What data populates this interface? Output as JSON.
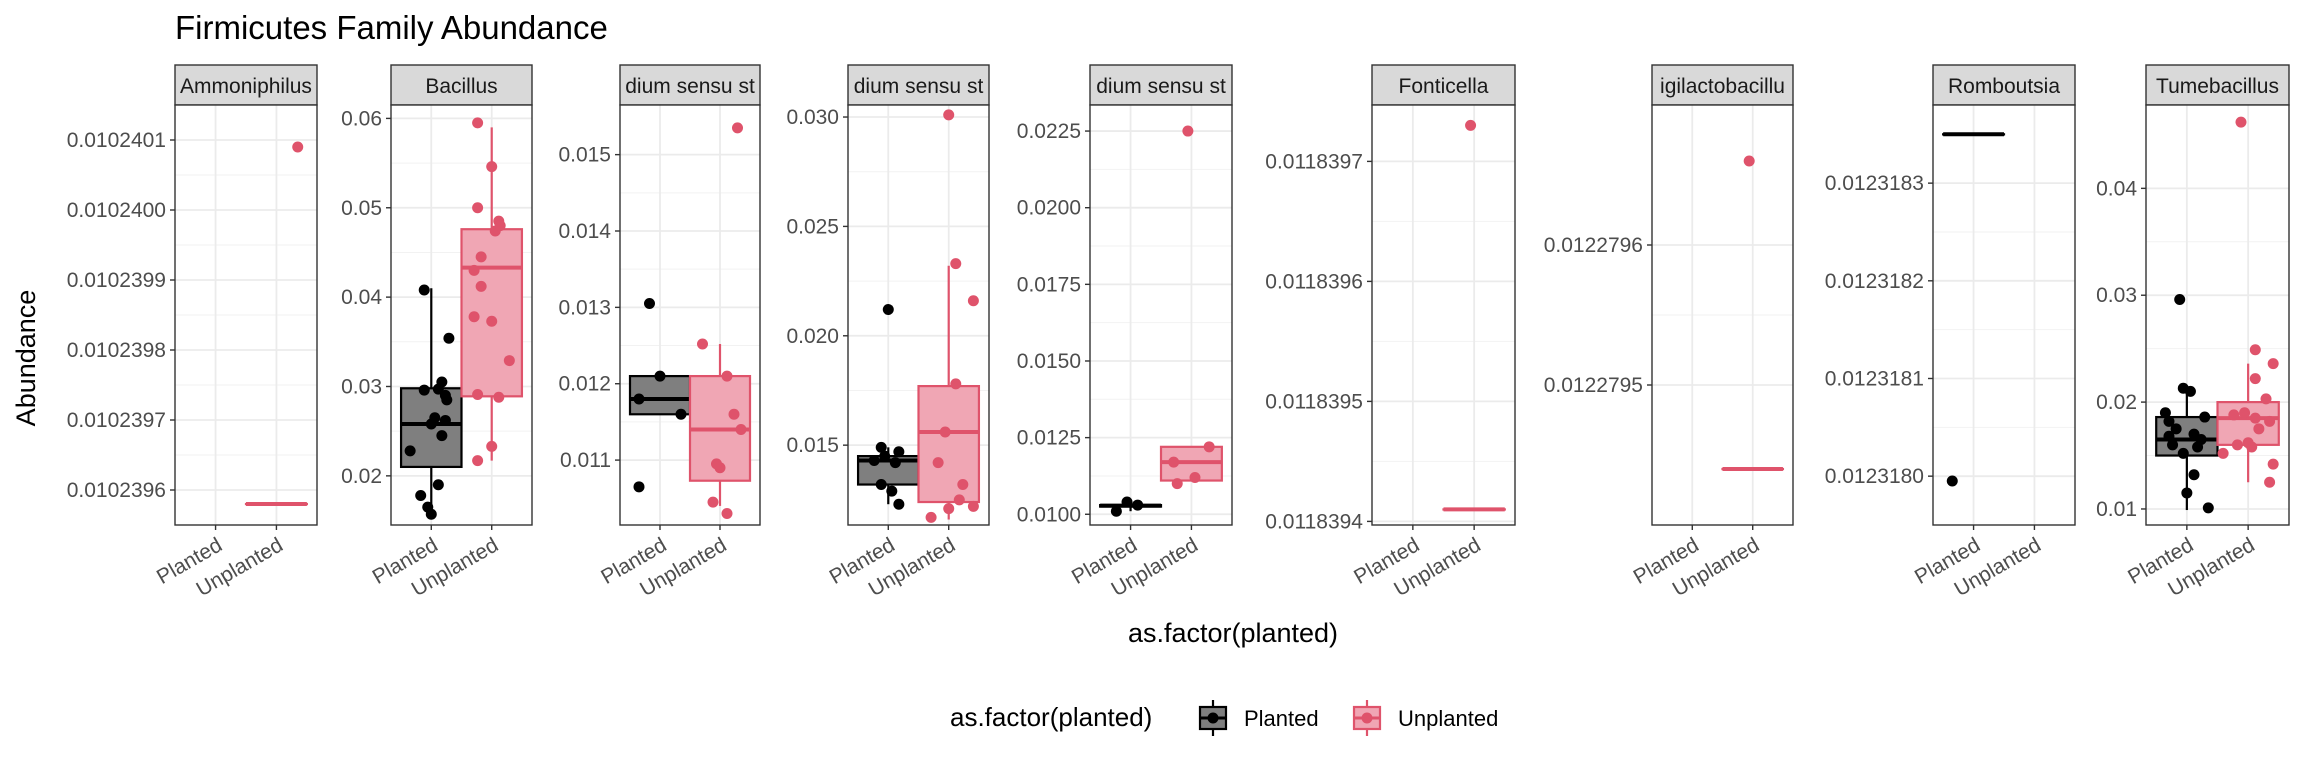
{
  "colors": {
    "planted": "#000000",
    "unplanted": "#DF536B"
  },
  "chart_data": {
    "type": "box",
    "title": "Firmicutes Family Abundance",
    "xlabel": "as.factor(planted)",
    "ylabel": "Abundance",
    "categories": [
      "Planted",
      "Unplanted"
    ],
    "grid": true,
    "legend": {
      "title": "as.factor(planted)",
      "position": "bottom",
      "entries": [
        "Planted",
        "Unplanted"
      ]
    },
    "panels": [
      {
        "strip": "Ammoniphilus",
        "ylim": [
          0.01023955,
          0.01024015
        ],
        "yticks": [
          0.0102396,
          0.0102397,
          0.0102398,
          0.0102399,
          0.01024,
          0.0102401
        ],
        "yticklabels": [
          "0.0102396",
          "0.0102397",
          "0.0102398",
          "0.0102399",
          "0.0102400",
          "0.0102401"
        ],
        "series": [
          {
            "name": "Planted",
            "box": null,
            "points": []
          },
          {
            "name": "Unplanted",
            "box": [
              0.01023958,
              0.01023958,
              0.01023958,
              0.01023958,
              0.01023958
            ],
            "points": [
              [
                0.3,
                0.01024009
              ]
            ]
          }
        ]
      },
      {
        "strip": "Bacillus",
        "ylim": [
          0.0145,
          0.0615
        ],
        "yticks": [
          0.02,
          0.03,
          0.04,
          0.05,
          0.06
        ],
        "yticklabels": [
          "0.02",
          "0.03",
          "0.04",
          "0.05",
          "0.06"
        ],
        "series": [
          {
            "name": "Planted",
            "box": [
              0.0157,
              0.021,
              0.0258,
              0.0298,
              0.041
            ],
            "points": [
              [
                -0.3,
                0.0228
              ],
              [
                -0.15,
                0.0178
              ],
              [
                -0.05,
                0.0165
              ],
              [
                0.1,
                0.019
              ],
              [
                0.0,
                0.0157
              ],
              [
                0.25,
                0.0354
              ],
              [
                0.1,
                0.0297
              ],
              [
                0.15,
                0.0305
              ],
              [
                0.2,
                0.029
              ],
              [
                -0.1,
                0.0296
              ],
              [
                0.05,
                0.0265
              ],
              [
                0.2,
                0.0262
              ],
              [
                0.15,
                0.0245
              ],
              [
                -0.1,
                0.0408
              ],
              [
                0.22,
                0.0285
              ],
              [
                0.0,
                0.0258
              ]
            ]
          },
          {
            "name": "Unplanted",
            "box": [
              0.0217,
              0.0289,
              0.0433,
              0.0476,
              0.059
            ],
            "points": [
              [
                -0.2,
                0.0595
              ],
              [
                0.0,
                0.0546
              ],
              [
                -0.2,
                0.05
              ],
              [
                0.1,
                0.0485
              ],
              [
                0.05,
                0.0474
              ],
              [
                -0.15,
                0.0445
              ],
              [
                -0.25,
                0.043
              ],
              [
                -0.15,
                0.0412
              ],
              [
                -0.25,
                0.0378
              ],
              [
                0.0,
                0.0373
              ],
              [
                0.25,
                0.0329
              ],
              [
                -0.2,
                0.0291
              ],
              [
                0.1,
                0.0288
              ],
              [
                0.0,
                0.0233
              ],
              [
                -0.2,
                0.0217
              ],
              [
                0.12,
                0.048
              ]
            ]
          }
        ]
      },
      {
        "strip": "dium sensu st",
        "ylim": [
          0.01015,
          0.01565
        ],
        "yticks": [
          0.011,
          0.012,
          0.013,
          0.014,
          0.015
        ],
        "yticklabels": [
          "0.011",
          "0.012",
          "0.013",
          "0.014",
          "0.015"
        ],
        "series": [
          {
            "name": "Planted",
            "box": [
              0.0116,
              0.0116,
              0.0118,
              0.0121,
              0.0121
            ],
            "points": [
              [
                -0.3,
                0.01065
              ],
              [
                -0.3,
                0.0118
              ],
              [
                0.3,
                0.0116
              ],
              [
                0.0,
                0.0121
              ],
              [
                -0.15,
                0.01305
              ]
            ]
          },
          {
            "name": "Unplanted",
            "box": [
              0.0104,
              0.01073,
              0.0114,
              0.0121,
              0.01252
            ],
            "points": [
              [
                0.25,
                0.01535
              ],
              [
                -0.25,
                0.01252
              ],
              [
                0.1,
                0.0121
              ],
              [
                0.2,
                0.0116
              ],
              [
                0.3,
                0.0114
              ],
              [
                0.0,
                0.0109
              ],
              [
                -0.05,
                0.01095
              ],
              [
                -0.1,
                0.01045
              ],
              [
                0.1,
                0.0103
              ]
            ]
          }
        ]
      },
      {
        "strip": "dium sensu st",
        "ylim": [
          0.01135,
          0.03055
        ],
        "yticks": [
          0.015,
          0.02,
          0.025,
          0.03
        ],
        "yticklabels": [
          "0.015",
          "0.020",
          "0.025",
          "0.030"
        ],
        "series": [
          {
            "name": "Planted",
            "box": [
              0.0123,
              0.0132,
              0.0143,
              0.0145,
              0.0149
            ],
            "points": [
              [
                0.0,
                0.0212
              ],
              [
                -0.1,
                0.0149
              ],
              [
                0.15,
                0.0147
              ],
              [
                -0.05,
                0.0145
              ],
              [
                -0.2,
                0.0143
              ],
              [
                0.1,
                0.0142
              ],
              [
                -0.1,
                0.0132
              ],
              [
                0.05,
                0.0129
              ],
              [
                0.15,
                0.0123
              ]
            ]
          },
          {
            "name": "Unplanted",
            "box": [
              0.0116,
              0.0124,
              0.0156,
              0.0177,
              0.0232
            ],
            "points": [
              [
                0.0,
                0.0301
              ],
              [
                0.1,
                0.0233
              ],
              [
                0.35,
                0.0216
              ],
              [
                0.1,
                0.0178
              ],
              [
                -0.05,
                0.0156
              ],
              [
                -0.15,
                0.0142
              ],
              [
                0.2,
                0.0132
              ],
              [
                0.35,
                0.0122
              ],
              [
                0.15,
                0.0125
              ],
              [
                -0.25,
                0.0117
              ],
              [
                0.0,
                0.0121
              ]
            ]
          }
        ]
      },
      {
        "strip": "dium sensu st",
        "ylim": [
          0.00965,
          0.02335
        ],
        "yticks": [
          0.01,
          0.0125,
          0.015,
          0.0175,
          0.02,
          0.0225
        ],
        "yticklabels": [
          "0.0100",
          "0.0125",
          "0.0150",
          "0.0175",
          "0.0200",
          "0.0225"
        ],
        "series": [
          {
            "name": "Planted",
            "box": [
              0.0101,
              0.01025,
              0.01028,
              0.0103,
              0.0104
            ],
            "points": [
              [
                -0.05,
                0.0104
              ],
              [
                -0.2,
                0.0101
              ],
              [
                0.1,
                0.0103
              ]
            ]
          },
          {
            "name": "Unplanted",
            "box": [
              0.0111,
              0.0111,
              0.0117,
              0.0122,
              0.0122
            ],
            "points": [
              [
                -0.05,
                0.0225
              ],
              [
                0.25,
                0.0122
              ],
              [
                -0.25,
                0.0117
              ],
              [
                -0.2,
                0.011
              ],
              [
                0.05,
                0.0112
              ]
            ]
          }
        ]
      },
      {
        "strip": "Fonticella",
        "ylim": [
          0.011839397,
          0.011839747
        ],
        "yticks": [
          0.0118394,
          0.0118395,
          0.0118396,
          0.0118397
        ],
        "yticklabels": [
          "0.0118394",
          "0.0118395",
          "0.0118396",
          "0.0118397"
        ],
        "series": [
          {
            "name": "Planted",
            "box": null,
            "points": []
          },
          {
            "name": "Unplanted",
            "box": [
              0.01183941,
              0.01183941,
              0.01183941,
              0.01183941,
              0.01183941
            ],
            "points": [
              [
                -0.05,
                0.01183973
              ]
            ]
          }
        ]
      },
      {
        "strip": "igilactobacillu",
        "ylim": [
          0.0122794,
          0.0122797
        ],
        "yticks": [
          0.0122795,
          0.0122796
        ],
        "yticklabels": [
          "0.0122795",
          "0.0122796"
        ],
        "series": [
          {
            "name": "Planted",
            "box": null,
            "points": []
          },
          {
            "name": "Unplanted",
            "box": [
              0.01227944,
              0.01227944,
              0.01227944,
              0.01227944,
              0.01227944
            ],
            "points": [
              [
                -0.05,
                0.01227966
              ]
            ]
          }
        ]
      },
      {
        "strip": "Romboutsia",
        "ylim": [
          0.01231795,
          0.01231838
        ],
        "yticks": [
          0.012318,
          0.0123181,
          0.0123182,
          0.0123183
        ],
        "yticklabels": [
          "0.0123180",
          "0.0123181",
          "0.0123182",
          "0.0123183"
        ],
        "series": [
          {
            "name": "Planted",
            "box": [
              0.01231835,
              0.01231835,
              0.01231835,
              0.01231835,
              0.01231835
            ],
            "points": [
              [
                -0.3,
                0.012317995
              ]
            ]
          },
          {
            "name": "Unplanted",
            "box": null,
            "points": []
          }
        ]
      },
      {
        "strip": "Tumebacillus",
        "ylim": [
          0.0085,
          0.0478
        ],
        "yticks": [
          0.01,
          0.02,
          0.03,
          0.04
        ],
        "yticklabels": [
          "0.01",
          "0.02",
          "0.03",
          "0.04"
        ],
        "series": [
          {
            "name": "Planted",
            "box": [
              0.0099,
              0.015,
              0.0165,
              0.0186,
              0.0215
            ],
            "points": [
              [
                -0.1,
                0.0296
              ],
              [
                -0.05,
                0.0213
              ],
              [
                0.05,
                0.021
              ],
              [
                -0.3,
                0.019
              ],
              [
                -0.25,
                0.0182
              ],
              [
                0.25,
                0.0186
              ],
              [
                -0.15,
                0.0175
              ],
              [
                0.1,
                0.017
              ],
              [
                0.2,
                0.0165
              ],
              [
                -0.2,
                0.016
              ],
              [
                0.15,
                0.0158
              ],
              [
                -0.05,
                0.0152
              ],
              [
                0.1,
                0.0132
              ],
              [
                0.0,
                0.0115
              ],
              [
                0.3,
                0.0101
              ],
              [
                -0.25,
                0.0168
              ]
            ]
          },
          {
            "name": "Unplanted",
            "box": [
              0.0125,
              0.016,
              0.0185,
              0.02,
              0.0236
            ],
            "points": [
              [
                -0.1,
                0.0462
              ],
              [
                0.1,
                0.0249
              ],
              [
                0.35,
                0.0236
              ],
              [
                0.1,
                0.0222
              ],
              [
                0.25,
                0.0203
              ],
              [
                -0.05,
                0.019
              ],
              [
                -0.2,
                0.0188
              ],
              [
                0.1,
                0.0185
              ],
              [
                0.3,
                0.0182
              ],
              [
                0.15,
                0.0175
              ],
              [
                -0.15,
                0.016
              ],
              [
                0.05,
                0.0158
              ],
              [
                0.35,
                0.0142
              ],
              [
                -0.35,
                0.0152
              ],
              [
                0.3,
                0.0125
              ],
              [
                0.0,
                0.0162
              ]
            ]
          }
        ]
      }
    ]
  }
}
